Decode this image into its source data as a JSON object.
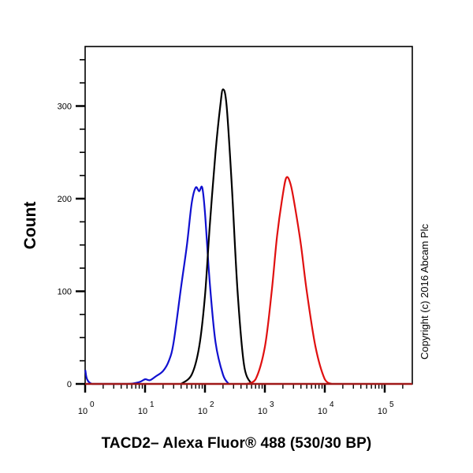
{
  "chart_data": {
    "type": "line",
    "title": "",
    "xlabel": "TACD2– Alexa Fluor® 488 (530/30 BP)",
    "ylabel": "Count",
    "xscale": "log",
    "xlim": [
      1,
      250000
    ],
    "ylim": [
      0,
      350
    ],
    "x_tick_labels": [
      "10^0",
      "10^1",
      "10^2",
      "10^3",
      "10^4",
      "10^5"
    ],
    "y_ticks": [
      0,
      100,
      200,
      300
    ],
    "grid": false,
    "legend": null,
    "annotation": "Copyright (c) 2016 Abcam Plc",
    "series": [
      {
        "name": "blue",
        "color": "#1010d0",
        "x": [
          1,
          1.3,
          5,
          8,
          10,
          12,
          15,
          20,
          25,
          30,
          40,
          50,
          60,
          70,
          80,
          90,
          100,
          120,
          150,
          200,
          250
        ],
        "values": [
          15,
          0,
          0,
          2,
          5,
          4,
          8,
          14,
          25,
          45,
          105,
          150,
          195,
          212,
          208,
          212,
          185,
          110,
          45,
          10,
          0
        ]
      },
      {
        "name": "black",
        "color": "#000000",
        "x": [
          40,
          60,
          80,
          100,
          120,
          150,
          180,
          200,
          230,
          280,
          350,
          450,
          600
        ],
        "values": [
          0,
          10,
          40,
          95,
          170,
          250,
          300,
          318,
          300,
          215,
          100,
          20,
          0
        ]
      },
      {
        "name": "red",
        "color": "#e01010",
        "x": [
          500,
          700,
          1000,
          1300,
          1600,
          2000,
          2300,
          2700,
          3200,
          4000,
          5000,
          7000,
          10000,
          13000
        ],
        "values": [
          0,
          5,
          40,
          100,
          160,
          205,
          223,
          215,
          190,
          150,
          100,
          40,
          5,
          0
        ]
      }
    ]
  },
  "labels": {
    "ylabel": "Count",
    "xlabel": "TACD2– Alexa Fluor® 488 (530/30 BP)",
    "copyright": "Copyright (c) 2016 Abcam Plc"
  },
  "axis": {
    "y_tick_text": [
      "0",
      "100",
      "200",
      "300"
    ],
    "x_decades": [
      "0",
      "1",
      "2",
      "3",
      "4",
      "5"
    ]
  }
}
